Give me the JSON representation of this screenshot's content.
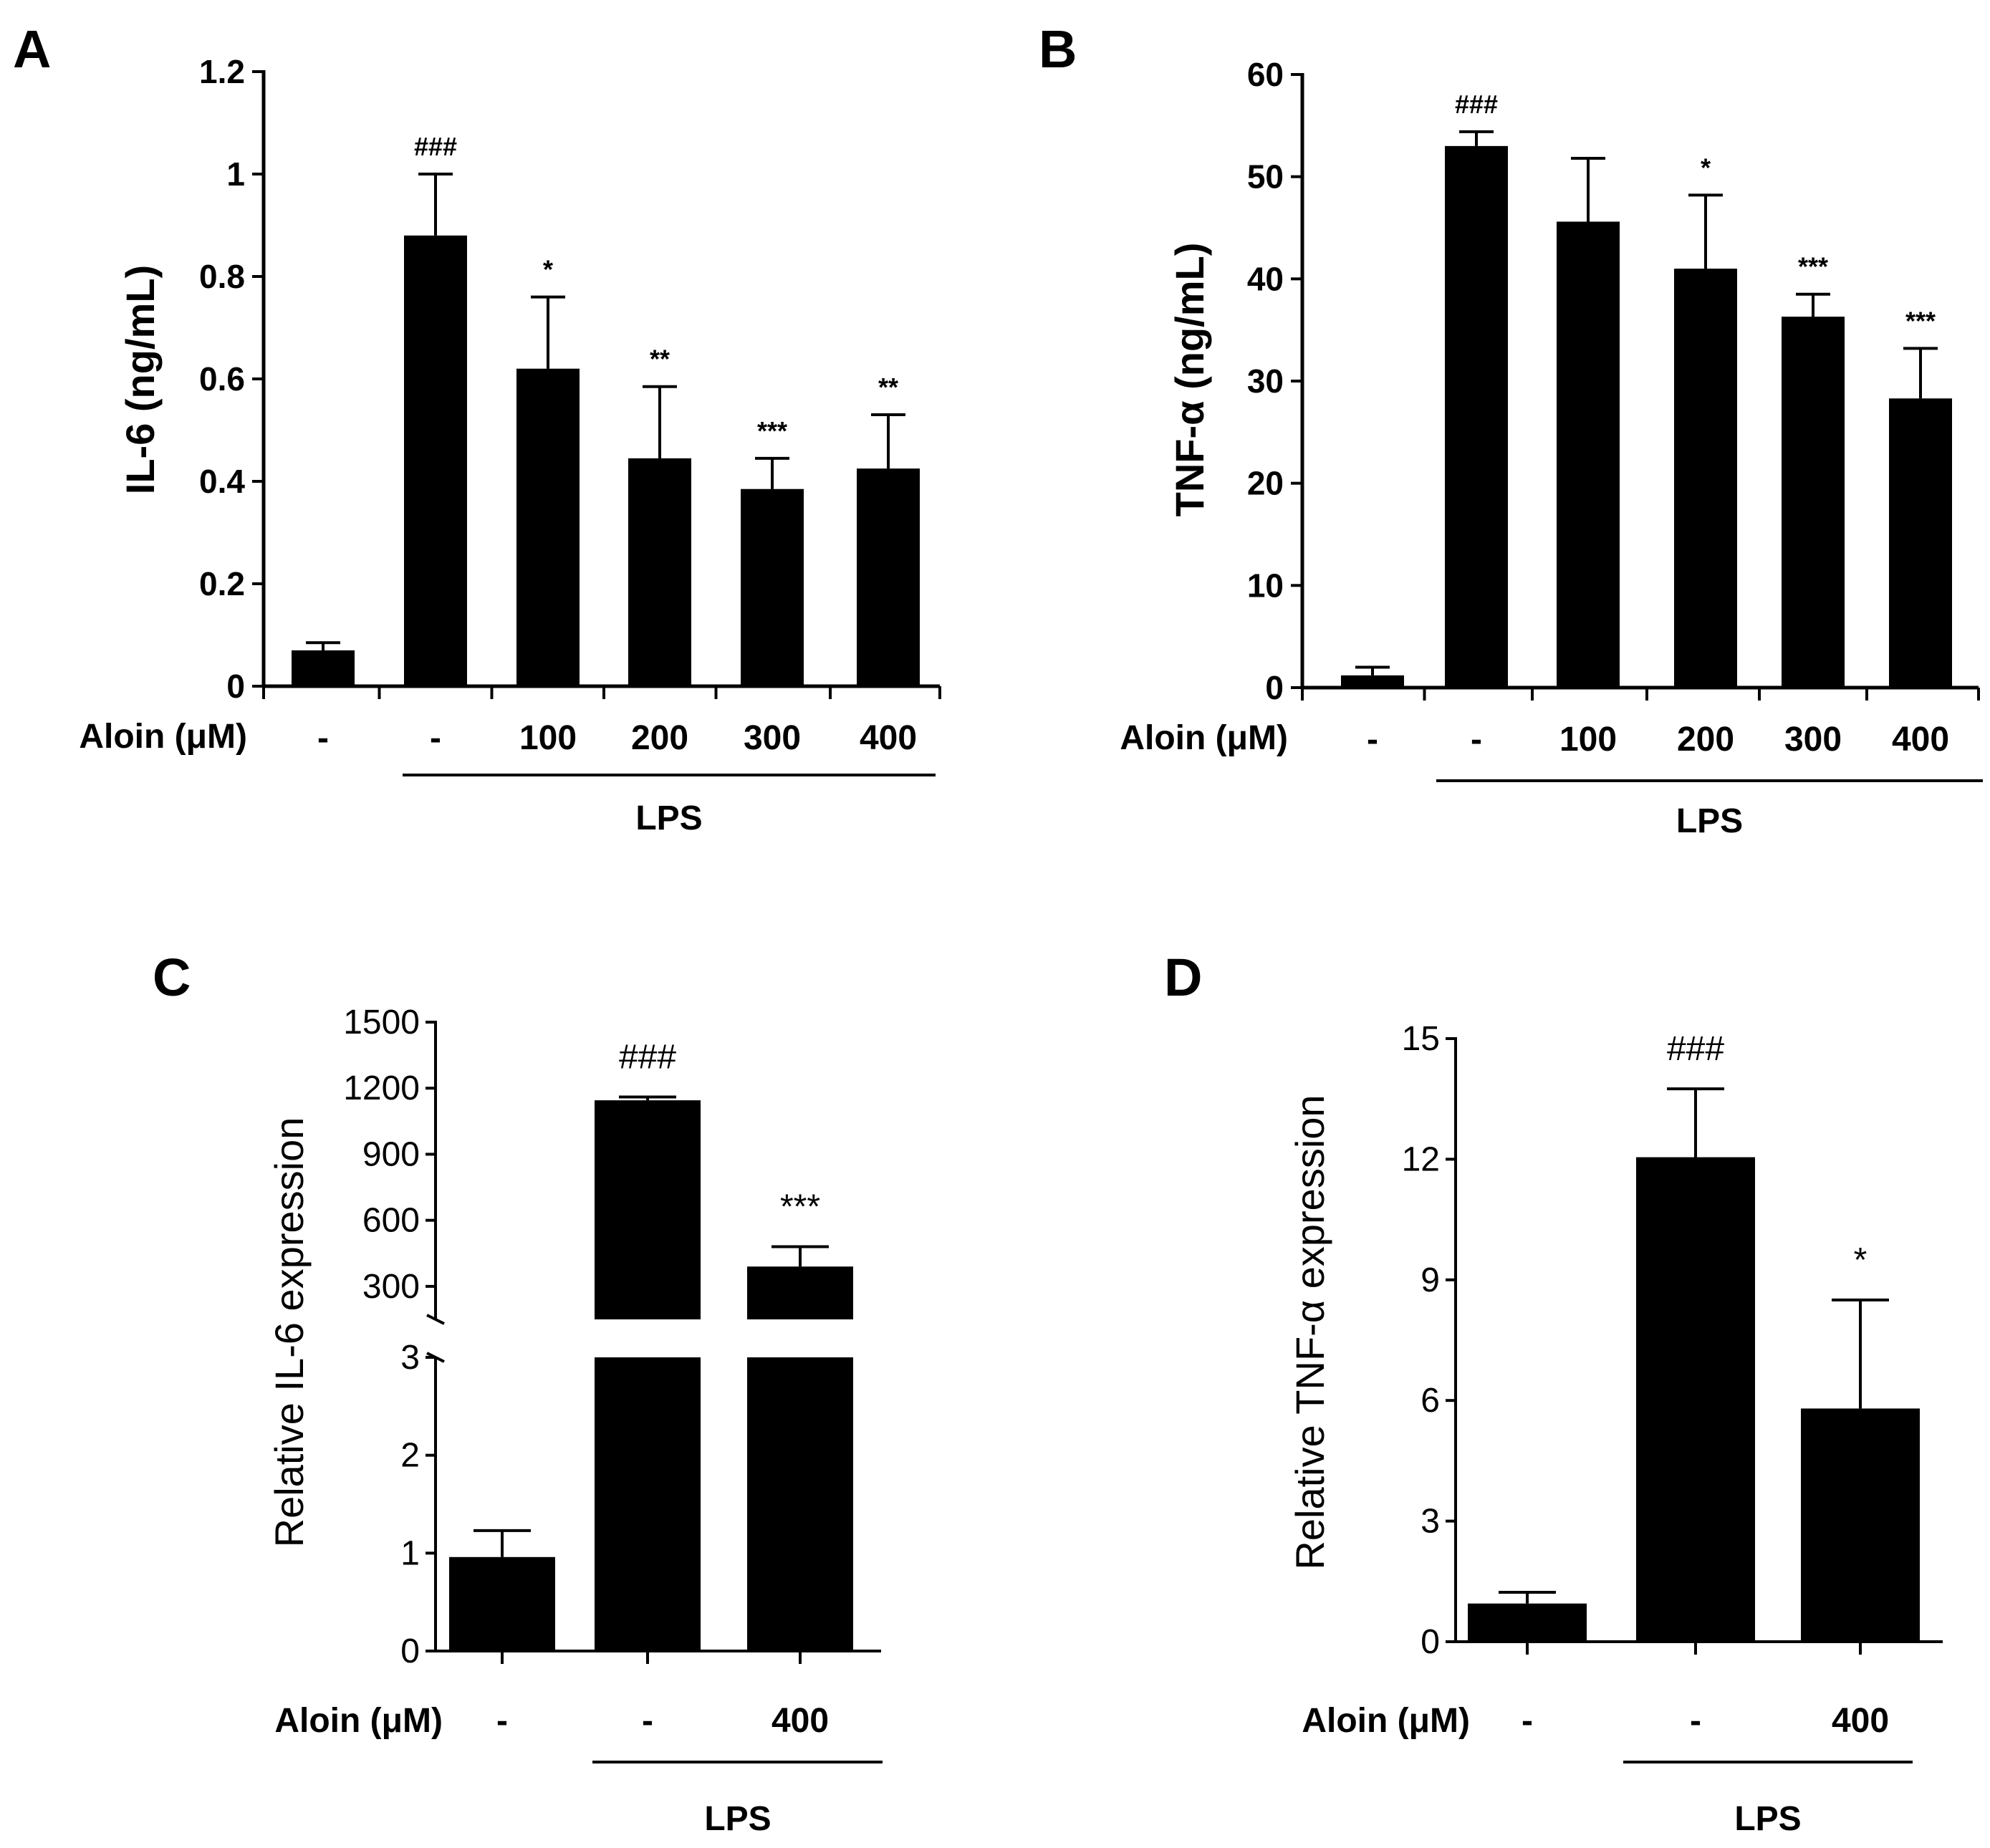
{
  "chart_data": [
    {
      "panel": "A",
      "type": "bar",
      "ylabel": "IL-6 (ng/mL)",
      "ylim": [
        0,
        1.2
      ],
      "yticks": [
        "0",
        "0.2",
        "0.4",
        "0.6",
        "0.8",
        "1",
        "1.2"
      ],
      "categories": [
        "-",
        "-",
        "100",
        "200",
        "300",
        "400"
      ],
      "values": [
        0.07,
        0.88,
        0.62,
        0.445,
        0.385,
        0.425
      ],
      "errors": [
        0.015,
        0.12,
        0.14,
        0.14,
        0.06,
        0.105
      ],
      "significance": [
        "",
        "###",
        "*",
        "**",
        "***",
        "**"
      ],
      "treatment_label": "Aloin (μM)",
      "group_label": "LPS"
    },
    {
      "panel": "B",
      "type": "bar",
      "ylabel": "TNF-α (ng/mL)",
      "ylim": [
        0,
        60
      ],
      "yticks": [
        "0",
        "10",
        "20",
        "30",
        "40",
        "50",
        "60"
      ],
      "categories": [
        "-",
        "-",
        "100",
        "200",
        "300",
        "400"
      ],
      "values": [
        1.2,
        53.0,
        45.6,
        41.0,
        36.3,
        28.3
      ],
      "errors": [
        0.8,
        1.4,
        6.2,
        7.2,
        2.2,
        4.9
      ],
      "significance": [
        "",
        "###",
        "",
        "*",
        "***",
        "***"
      ],
      "treatment_label": "Aloin (μM)",
      "group_label": "LPS"
    },
    {
      "panel": "C",
      "type": "bar",
      "broken_axis": true,
      "ylabel": "Relative IL-6 expression",
      "lower_ylim": [
        0,
        3
      ],
      "lower_yticks": [
        "0",
        "1",
        "2",
        "3"
      ],
      "upper_ylim": [
        150,
        1500
      ],
      "upper_yticks": [
        "300",
        "600",
        "900",
        "1200",
        "1500"
      ],
      "categories": [
        "-",
        "-",
        "400"
      ],
      "values": [
        0.96,
        1145,
        390
      ],
      "errors": [
        0.27,
        15,
        90
      ],
      "significance": [
        "",
        "###",
        "***"
      ],
      "treatment_label": "Aloin (μM)",
      "group_label": "LPS"
    },
    {
      "panel": "D",
      "type": "bar",
      "ylabel": "Relative TNF-α expression",
      "ylim": [
        0,
        15
      ],
      "yticks": [
        "0",
        "3",
        "6",
        "9",
        "12",
        "15"
      ],
      "categories": [
        "-",
        "-",
        "400"
      ],
      "values": [
        0.95,
        12.05,
        5.8
      ],
      "errors": [
        0.28,
        1.7,
        2.7
      ],
      "significance": [
        "",
        "###",
        "*"
      ],
      "treatment_label": "Aloin (μM)",
      "group_label": "LPS"
    }
  ]
}
